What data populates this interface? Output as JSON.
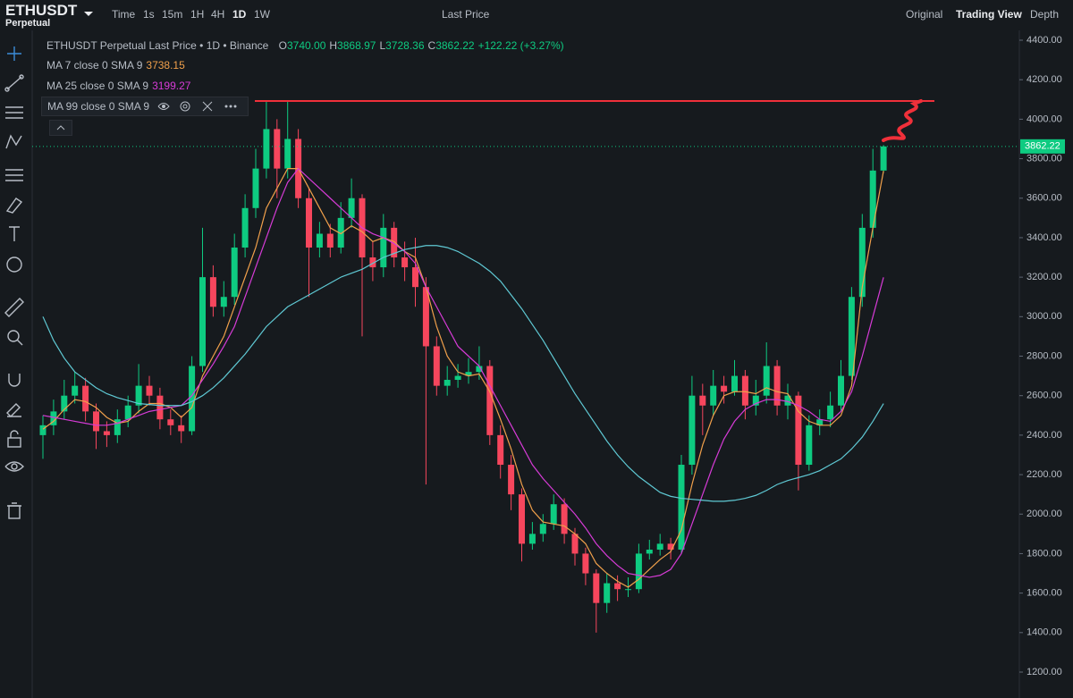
{
  "header": {
    "symbol": "ETHUSDT",
    "market": "Perpetual"
  },
  "toolbar": {
    "intervals": [
      "Time",
      "1s",
      "15m",
      "1H",
      "4H",
      "1D",
      "1W"
    ],
    "price_type": "Last Price",
    "views": [
      "Original",
      "Trading View",
      "Depth"
    ]
  },
  "legend": {
    "title": "ETHUSDT Perpetual Last Price • 1D • Binance",
    "ohlc": [
      {
        "label": "O",
        "value": "3740.00"
      },
      {
        "label": "H",
        "value": "3868.97"
      },
      {
        "label": "L",
        "value": "3728.36"
      },
      {
        "label": "C",
        "value": "3862.22"
      }
    ],
    "change": "+122.22 (+3.27%)",
    "ma_values": [
      "3738.15",
      "3199.27"
    ]
  },
  "chart_data": {
    "type": "candlestick",
    "open": [
      2400,
      2450,
      2520,
      2600,
      2650,
      2520,
      2420,
      2400,
      2480,
      2550,
      2650,
      2600,
      2480,
      2450,
      2420,
      2750,
      3200,
      3050,
      3100,
      3350,
      3550,
      3750,
      3950,
      3750,
      3900,
      3600,
      3350,
      3420,
      3350,
      3500,
      3600,
      3300,
      3250,
      3450,
      3300,
      3250,
      3150,
      2850,
      2650,
      2680,
      2700,
      2720,
      2750,
      2400,
      2250,
      2100,
      1850,
      1900,
      1950,
      2050,
      1900,
      1800,
      1700,
      1550,
      1650,
      1620,
      1620,
      1800,
      1820,
      1850,
      1820,
      2250,
      2600,
      2550,
      2650,
      2620,
      2700,
      2550,
      2600,
      2750,
      2550,
      2600,
      2250,
      2450,
      2480,
      2550,
      2700,
      3100,
      3450,
      3740
    ],
    "high": [
      2500,
      2580,
      2680,
      2720,
      2690,
      2560,
      2470,
      2530,
      2600,
      2760,
      2700,
      2640,
      2530,
      2500,
      2800,
      3450,
      3260,
      3180,
      3420,
      3620,
      3850,
      4090,
      4000,
      4095,
      3950,
      3650,
      3480,
      3470,
      3580,
      3700,
      3620,
      3380,
      3520,
      3480,
      3380,
      3400,
      3200,
      2900,
      2750,
      2760,
      2790,
      2850,
      2780,
      2450,
      2300,
      2130,
      1960,
      2000,
      2100,
      2080,
      1930,
      1830,
      1720,
      1700,
      1690,
      1680,
      1850,
      1870,
      1900,
      1880,
      2300,
      2700,
      2660,
      2730,
      2700,
      2780,
      2730,
      2680,
      2870,
      2780,
      2660,
      2620,
      2500,
      2530,
      2620,
      2780,
      3150,
      3520,
      3850,
      3868.97
    ],
    "low": [
      2280,
      2400,
      2480,
      2560,
      2470,
      2330,
      2340,
      2360,
      2440,
      2510,
      2550,
      2430,
      2400,
      2360,
      2400,
      2720,
      3000,
      3000,
      3060,
      3300,
      3500,
      3700,
      3600,
      3700,
      3550,
      3100,
      3300,
      3300,
      3320,
      3450,
      2900,
      3180,
      3200,
      3250,
      3180,
      3050,
      2150,
      2600,
      2600,
      2640,
      2660,
      2680,
      2350,
      2180,
      2020,
      1760,
      1820,
      1860,
      1920,
      1850,
      1740,
      1640,
      1400,
      1500,
      1560,
      1580,
      1600,
      1770,
      1790,
      1770,
      1800,
      2200,
      2400,
      2500,
      2560,
      2600,
      2480,
      2500,
      2560,
      2500,
      2480,
      2120,
      2220,
      2400,
      2440,
      2520,
      2680,
      3050,
      3400,
      3728.36
    ],
    "close": [
      2450,
      2520,
      2600,
      2650,
      2520,
      2420,
      2400,
      2480,
      2550,
      2650,
      2600,
      2480,
      2450,
      2420,
      2750,
      3200,
      3050,
      3100,
      3350,
      3550,
      3750,
      3950,
      3750,
      3900,
      3600,
      3350,
      3420,
      3350,
      3500,
      3600,
      3300,
      3250,
      3450,
      3300,
      3250,
      3150,
      2850,
      2650,
      2680,
      2700,
      2720,
      2750,
      2400,
      2250,
      2100,
      1850,
      1900,
      1950,
      2050,
      1900,
      1800,
      1700,
      1550,
      1650,
      1620,
      1620,
      1800,
      1820,
      1850,
      1820,
      2250,
      2600,
      2550,
      2650,
      2620,
      2700,
      2550,
      2600,
      2750,
      2550,
      2600,
      2250,
      2450,
      2480,
      2550,
      2700,
      3100,
      3450,
      3740,
      3862.22
    ],
    "up_color": "#0ecb81",
    "down_color": "#f6465d",
    "series": [
      {
        "name": "MA 7 close 0 SMA 9",
        "color": "#f0a04b",
        "values": [
          2430,
          2470,
          2530,
          2580,
          2570,
          2540,
          2490,
          2460,
          2470,
          2520,
          2560,
          2560,
          2540,
          2490,
          2540,
          2700,
          2800,
          2900,
          3050,
          3200,
          3350,
          3550,
          3650,
          3750,
          3750,
          3650,
          3550,
          3450,
          3420,
          3460,
          3430,
          3380,
          3400,
          3380,
          3330,
          3300,
          3150,
          2950,
          2800,
          2720,
          2700,
          2710,
          2620,
          2480,
          2330,
          2150,
          2020,
          1960,
          1950,
          1940,
          1900,
          1850,
          1750,
          1700,
          1660,
          1630,
          1670,
          1720,
          1770,
          1810,
          1920,
          2150,
          2350,
          2500,
          2600,
          2620,
          2620,
          2610,
          2640,
          2620,
          2610,
          2520,
          2470,
          2450,
          2450,
          2500,
          2650,
          3150,
          3450,
          3738.15
        ]
      },
      {
        "name": "MA 25 close 0 SMA 9",
        "color": "#d63bd6",
        "values": [
          2500,
          2490,
          2480,
          2470,
          2460,
          2450,
          2450,
          2460,
          2480,
          2500,
          2520,
          2530,
          2540,
          2550,
          2600,
          2680,
          2760,
          2850,
          2950,
          3100,
          3250,
          3400,
          3550,
          3680,
          3750,
          3700,
          3650,
          3600,
          3550,
          3500,
          3450,
          3420,
          3400,
          3370,
          3330,
          3270,
          3150,
          3050,
          2950,
          2850,
          2800,
          2750,
          2650,
          2550,
          2450,
          2350,
          2250,
          2180,
          2120,
          2060,
          2000,
          1930,
          1850,
          1790,
          1740,
          1700,
          1690,
          1680,
          1690,
          1720,
          1800,
          1950,
          2100,
          2250,
          2380,
          2470,
          2530,
          2560,
          2580,
          2580,
          2570,
          2550,
          2520,
          2480,
          2470,
          2520,
          2620,
          2800,
          3000,
          3199.27
        ]
      },
      {
        "name": "MA 99 close 0 SMA 9",
        "color": "#5fc9d4",
        "values": [
          3000,
          2880,
          2790,
          2720,
          2680,
          2640,
          2610,
          2590,
          2575,
          2560,
          2555,
          2550,
          2550,
          2550,
          2570,
          2600,
          2640,
          2690,
          2750,
          2810,
          2880,
          2950,
          3000,
          3050,
          3080,
          3110,
          3140,
          3170,
          3200,
          3220,
          3240,
          3270,
          3300,
          3320,
          3340,
          3350,
          3360,
          3360,
          3350,
          3330,
          3300,
          3270,
          3230,
          3180,
          3110,
          3040,
          2960,
          2880,
          2790,
          2700,
          2610,
          2530,
          2450,
          2370,
          2300,
          2240,
          2190,
          2150,
          2110,
          2090,
          2080,
          2075,
          2070,
          2065,
          2065,
          2070,
          2080,
          2095,
          2120,
          2150,
          2170,
          2185,
          2200,
          2220,
          2250,
          2280,
          2330,
          2390,
          2470,
          2560
        ]
      }
    ],
    "last_price": 3862.22,
    "ylim": [
      1200,
      4400
    ],
    "yticks": [
      {
        "value": 4400,
        "label": "4400.00"
      },
      {
        "value": 4200,
        "label": "4200.00"
      },
      {
        "value": 4000,
        "label": "4000.00"
      },
      {
        "value": 3800,
        "label": "3800.00"
      },
      {
        "value": 3600,
        "label": "3600.00"
      },
      {
        "value": 3400,
        "label": "3400.00"
      },
      {
        "value": 3200,
        "label": "3200.00"
      },
      {
        "value": 3000,
        "label": "3000.00"
      },
      {
        "value": 2800,
        "label": "2800.00"
      },
      {
        "value": 2600,
        "label": "2600.00"
      },
      {
        "value": 2400,
        "label": "2400.00"
      },
      {
        "value": 2200,
        "label": "2200.00"
      },
      {
        "value": 2000,
        "label": "2000.00"
      },
      {
        "value": 1800,
        "label": "1800.00"
      },
      {
        "value": 1600,
        "label": "1600.00"
      },
      {
        "value": 1400,
        "label": "1400.00"
      },
      {
        "value": 1200,
        "label": "1200.00"
      }
    ],
    "grid": false
  }
}
